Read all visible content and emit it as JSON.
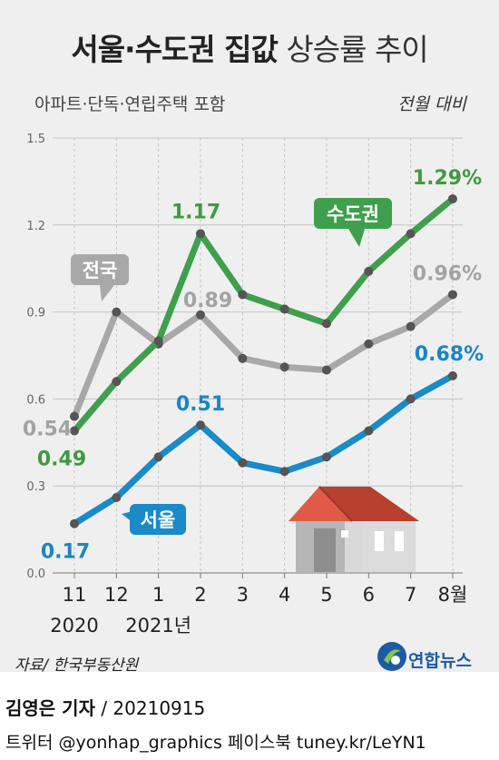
{
  "header": {
    "title_bold": "서울·수도권 집값",
    "title_light": "상승률 추이",
    "subtitle": "아파트·단독·연립주택 포함",
    "unit": "전월 대비"
  },
  "source": "자료/ 한국부동산원",
  "logo": {
    "text": "연합뉴스",
    "colors": {
      "brand": "#1d5aa5",
      "accent": "#8bc34a"
    }
  },
  "footer": {
    "author": "김영은 기자",
    "date": "20210915",
    "social": "트위터 @yonhap_graphics  페이스북 tuney.kr/LeYN1"
  },
  "colors": {
    "background": "#efefef",
    "grid": "#c4c4c4",
    "axis": "#555555"
  },
  "chart_data": {
    "type": "line",
    "x": [
      "11",
      "12",
      "1",
      "2",
      "3",
      "4",
      "5",
      "6",
      "7",
      "8월"
    ],
    "x_year_labels": [
      {
        "text": "2020",
        "under": 0
      },
      {
        "text": "2021년",
        "under": 2
      }
    ],
    "ylim": [
      0,
      1.5
    ],
    "yticks": [
      "0.0",
      "0.3",
      "0.6",
      "0.9",
      "1.2",
      "1.5"
    ],
    "ytick_values": [
      0,
      0.3,
      0.6,
      0.9,
      1.2,
      1.5
    ],
    "series": [
      {
        "name": "전국",
        "color": "#a8a8a8",
        "label_color": "#a3a3a3",
        "values": [
          0.54,
          0.9,
          0.79,
          0.89,
          0.74,
          0.71,
          0.7,
          0.79,
          0.85,
          0.96
        ],
        "data_labels": [
          {
            "index": 0,
            "text": "0.54"
          },
          {
            "index": 3,
            "text": "0.89"
          },
          {
            "index": 9,
            "text": "0.96%"
          }
        ]
      },
      {
        "name": "수도권",
        "color": "#3f9f4d",
        "label_color": "#3f9a3f",
        "values": [
          0.49,
          0.66,
          0.8,
          1.17,
          0.96,
          0.91,
          0.86,
          1.04,
          1.17,
          1.29
        ],
        "data_labels": [
          {
            "index": 0,
            "text": "0.49"
          },
          {
            "index": 3,
            "text": "1.17"
          },
          {
            "index": 9,
            "text": "1.29%"
          }
        ]
      },
      {
        "name": "서울",
        "color": "#1a8ac8",
        "label_color": "#1a85c6",
        "values": [
          0.17,
          0.26,
          0.4,
          0.51,
          0.38,
          0.35,
          0.4,
          0.49,
          0.6,
          0.68
        ],
        "data_labels": [
          {
            "index": 0,
            "text": "0.17"
          },
          {
            "index": 3,
            "text": "0.51"
          },
          {
            "index": 9,
            "text": "0.68%"
          }
        ]
      }
    ],
    "grid": true,
    "vertical_grid": "dashed"
  }
}
